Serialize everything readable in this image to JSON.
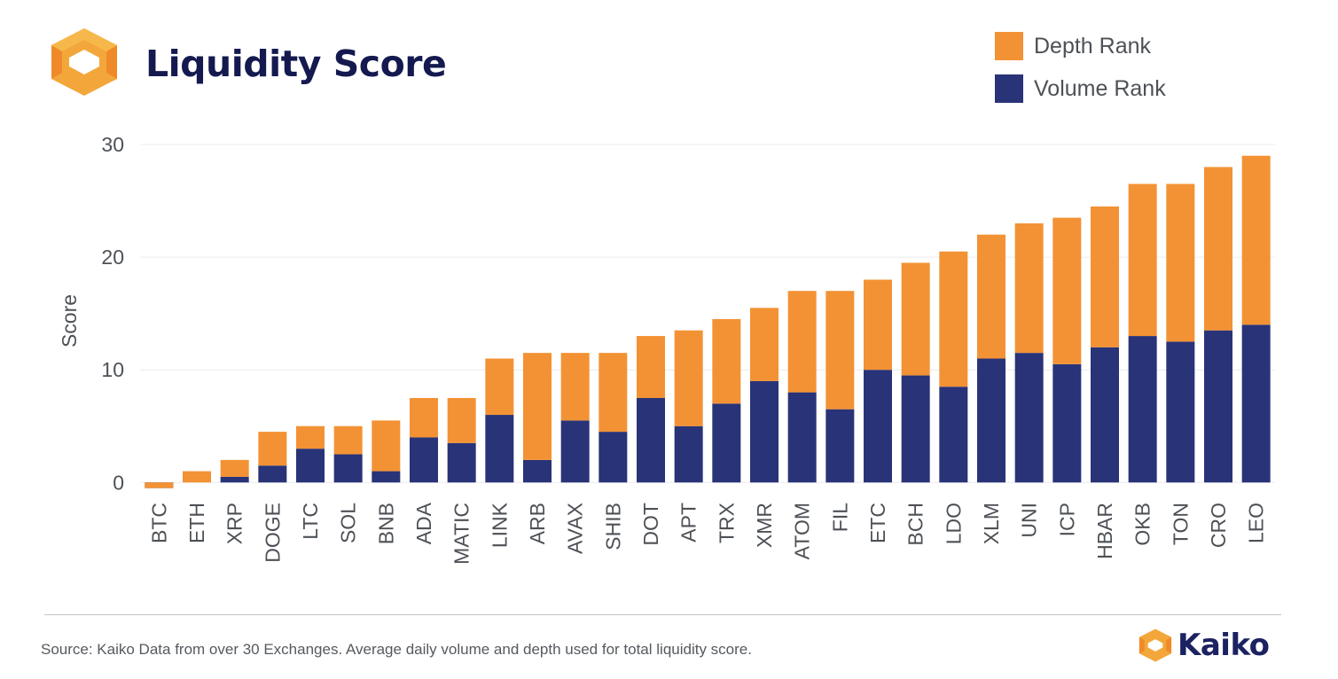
{
  "header": {
    "title": "Liquidity Score",
    "logo": "kaiko-hexagon-logo"
  },
  "legend": [
    {
      "label": "Depth Rank",
      "color": "#f39234"
    },
    {
      "label": "Volume Rank",
      "color": "#283378"
    }
  ],
  "footer": {
    "source": "Source: Kaiko Data from over 30 Exchanges. Average daily volume and depth used for total liquidity score.",
    "brand": "Kaiko"
  },
  "chart_data": {
    "type": "bar",
    "stacked": true,
    "title": "Liquidity Score",
    "xlabel": "",
    "ylabel": "Score",
    "ylim": [
      -1,
      30
    ],
    "yticks": [
      0,
      10,
      20,
      30
    ],
    "grid": true,
    "legend_position": "top-right",
    "categories": [
      "BTC",
      "ETH",
      "XRP",
      "DOGE",
      "LTC",
      "SOL",
      "BNB",
      "ADA",
      "MATIC",
      "LINK",
      "ARB",
      "AVAX",
      "SHIB",
      "DOT",
      "APT",
      "TRX",
      "XMR",
      "ATOM",
      "FIL",
      "ETC",
      "BCH",
      "LDO",
      "XLM",
      "UNI",
      "ICP",
      "HBAR",
      "OKB",
      "TON",
      "CRO",
      "LEO"
    ],
    "series": [
      {
        "name": "Volume Rank",
        "color": "#283378",
        "values": [
          -0.5,
          0,
          0.5,
          1.5,
          3,
          2.5,
          1,
          4,
          3.5,
          6,
          2,
          5.5,
          4.5,
          7.5,
          5,
          7,
          9,
          8,
          6.5,
          10,
          9.5,
          8.5,
          11,
          11.5,
          10.5,
          12,
          13,
          12.5,
          13.5,
          14
        ]
      },
      {
        "name": "Depth Rank",
        "color": "#f39234",
        "values": [
          0.5,
          1,
          1.5,
          3,
          2,
          2.5,
          4.5,
          3.5,
          4,
          5,
          9.5,
          6,
          7,
          5.5,
          8.5,
          7.5,
          6.5,
          9,
          10.5,
          8,
          10,
          12,
          11,
          11.5,
          13,
          12.5,
          13.5,
          14,
          14.5,
          15
        ]
      }
    ]
  }
}
